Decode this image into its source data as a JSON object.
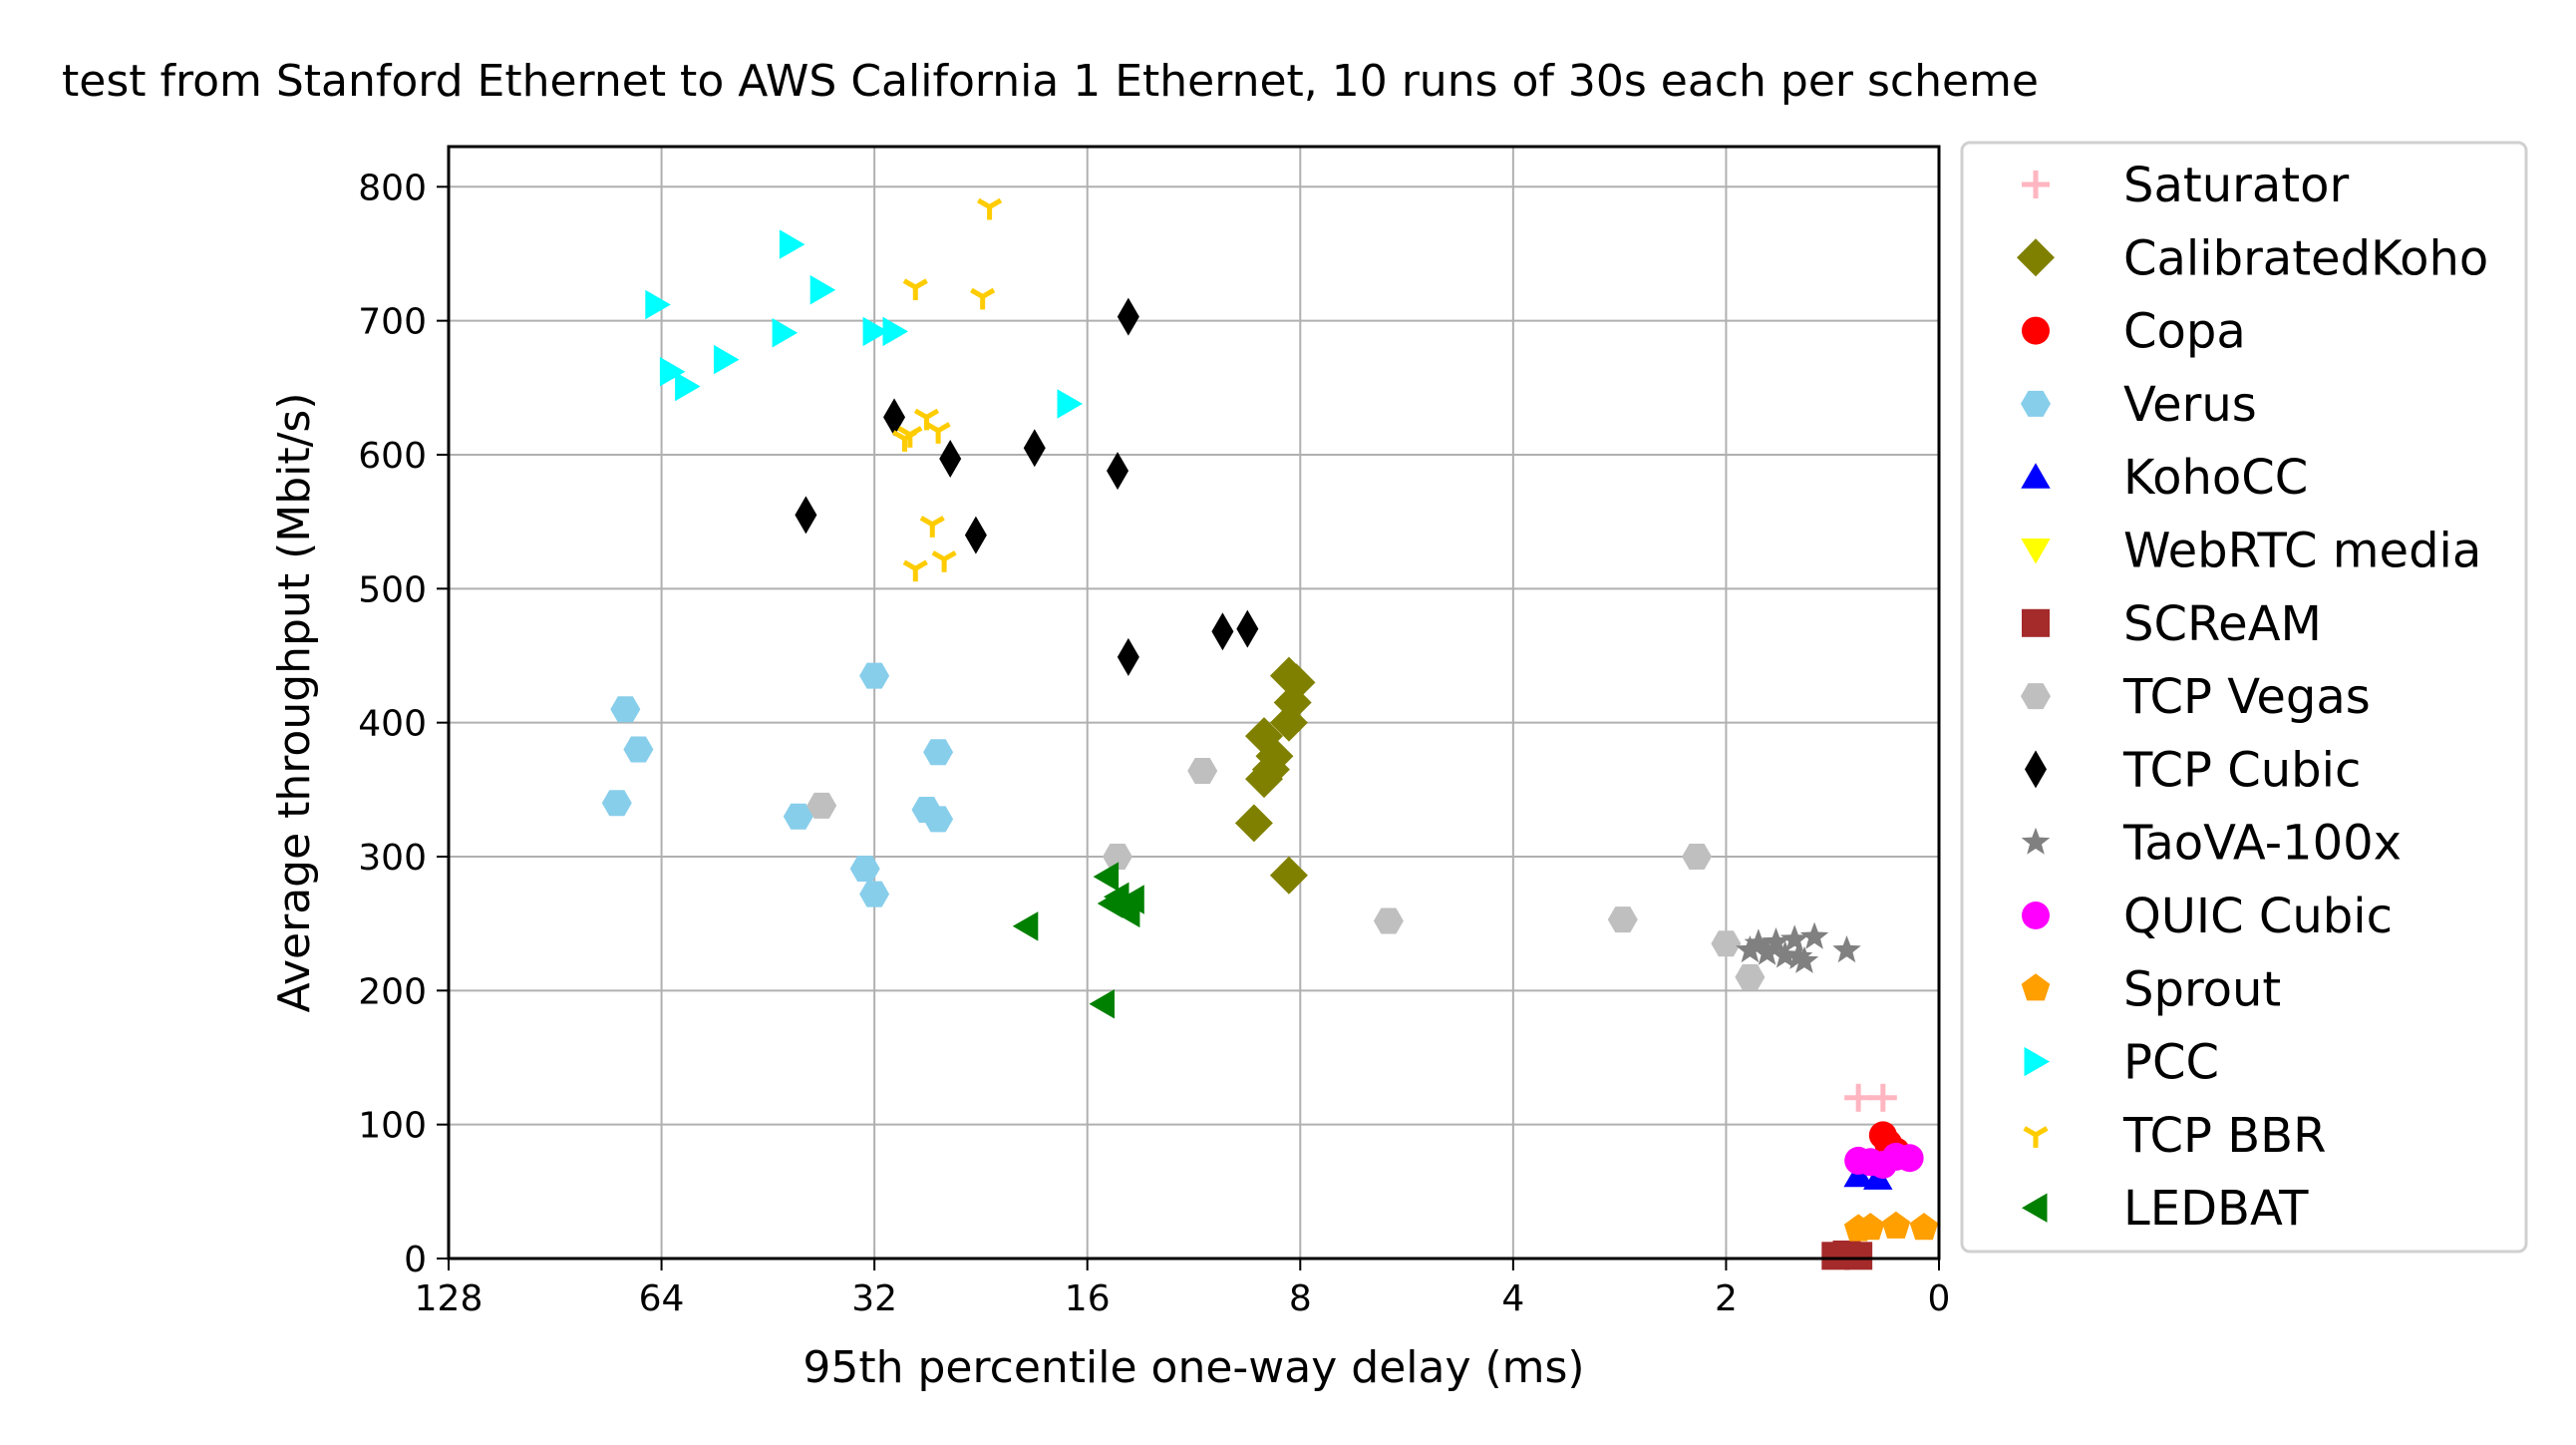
{
  "chart_data": {
    "type": "scatter",
    "title": "test from Stanford Ethernet to AWS California 1 Ethernet, 10 runs of 30s each per scheme",
    "xlabel": "95th percentile one-way delay (ms)",
    "ylabel": "Average throughput (Mbit/s)",
    "x_scale": "log2, inverted",
    "xlim": [
      128,
      0
    ],
    "ylim": [
      0,
      830
    ],
    "x_ticks": [
      128,
      64,
      32,
      16,
      8,
      4,
      2,
      0
    ],
    "x_tick_labels": [
      "128",
      "64",
      "32",
      "16",
      "8",
      "4",
      "2",
      "0"
    ],
    "y_ticks": [
      0,
      100,
      200,
      300,
      400,
      500,
      600,
      700,
      800
    ],
    "y_tick_labels": [
      "0",
      "100",
      "200",
      "300",
      "400",
      "500",
      "600",
      "700",
      "800"
    ],
    "grid": true,
    "legend_position": "outside right",
    "series": [
      {
        "name": "Saturator",
        "marker": "plus",
        "color": "#ffb6c1",
        "points": [
          [
            1.3,
            120
          ],
          [
            1.2,
            120
          ]
        ]
      },
      {
        "name": "CalibratedKoho",
        "marker": "diamond",
        "color": "#808000",
        "points": [
          [
            8.3,
            435
          ],
          [
            8.1,
            430
          ],
          [
            8.2,
            415
          ],
          [
            8.3,
            400
          ],
          [
            9.0,
            390
          ],
          [
            8.7,
            375
          ],
          [
            8.8,
            365
          ],
          [
            9.0,
            358
          ],
          [
            9.3,
            325
          ],
          [
            8.3,
            286
          ]
        ]
      },
      {
        "name": "Copa",
        "marker": "circle",
        "color": "#ff0000",
        "points": [
          [
            1.2,
            92
          ],
          [
            1.18,
            86
          ],
          [
            1.15,
            80
          ]
        ]
      },
      {
        "name": "Verus",
        "marker": "hexagon",
        "color": "#87ceeb",
        "points": [
          [
            72,
            410
          ],
          [
            69,
            380
          ],
          [
            74,
            340
          ],
          [
            32,
            435
          ],
          [
            26,
            378
          ],
          [
            27,
            335
          ],
          [
            26,
            328
          ],
          [
            41,
            330
          ],
          [
            33,
            291
          ],
          [
            32,
            272
          ]
        ]
      },
      {
        "name": "KohoCC",
        "marker": "triangle-up",
        "color": "#0000ff",
        "points": [
          [
            1.3,
            62
          ],
          [
            1.22,
            60
          ]
        ]
      },
      {
        "name": "WebRTC media",
        "marker": "triangle-down",
        "color": "#ffff00",
        "points": []
      },
      {
        "name": "SCReAM",
        "marker": "square",
        "color": "#a52a2a",
        "points": [
          [
            1.4,
            2
          ],
          [
            1.3,
            2
          ],
          [
            1.35,
            3
          ]
        ]
      },
      {
        "name": "TCP Vegas",
        "marker": "hexagon",
        "color": "#bfbfbf",
        "points": [
          [
            38,
            338
          ],
          [
            14.5,
            300
          ],
          [
            11,
            364
          ],
          [
            6,
            252
          ],
          [
            2.8,
            253
          ],
          [
            2.2,
            300
          ],
          [
            2.0,
            235
          ],
          [
            1.85,
            210
          ]
        ]
      },
      {
        "name": "TCP Cubic",
        "marker": "diamond-thin",
        "color": "#000000",
        "points": [
          [
            14,
            703
          ],
          [
            30,
            628
          ],
          [
            25,
            597
          ],
          [
            19,
            605
          ],
          [
            14.5,
            588
          ],
          [
            40,
            555
          ],
          [
            23,
            540
          ],
          [
            10.3,
            468
          ],
          [
            9.5,
            470
          ],
          [
            14,
            449
          ]
        ]
      },
      {
        "name": "TaoVA-100x",
        "marker": "star",
        "color": "#808080",
        "points": [
          [
            1.8,
            235
          ],
          [
            1.7,
            236
          ],
          [
            1.6,
            238
          ],
          [
            1.5,
            240
          ],
          [
            1.85,
            230
          ],
          [
            1.75,
            228
          ],
          [
            1.65,
            226
          ],
          [
            1.58,
            225
          ],
          [
            1.55,
            222
          ],
          [
            1.35,
            230
          ]
        ]
      },
      {
        "name": "QUIC Cubic",
        "marker": "circle",
        "color": "#ff00ff",
        "points": [
          [
            1.25,
            72
          ],
          [
            1.15,
            76
          ],
          [
            1.1,
            75
          ],
          [
            1.2,
            70
          ],
          [
            1.3,
            73
          ]
        ]
      },
      {
        "name": "Sprout",
        "marker": "pentagon",
        "color": "#ff9f00",
        "points": [
          [
            1.25,
            23
          ],
          [
            1.15,
            24
          ],
          [
            1.05,
            23
          ],
          [
            1.3,
            22
          ]
        ]
      },
      {
        "name": "PCC",
        "marker": "triangle-right",
        "color": "#00ffff",
        "points": [
          [
            42,
            757
          ],
          [
            38,
            723
          ],
          [
            65,
            712
          ],
          [
            52,
            671
          ],
          [
            43,
            691
          ],
          [
            32,
            692
          ],
          [
            30,
            692
          ],
          [
            62,
            662
          ],
          [
            59,
            651
          ],
          [
            17,
            638
          ]
        ]
      },
      {
        "name": "TCP BBR",
        "marker": "tri-down",
        "color": "#ffcc00",
        "points": [
          [
            22,
            785
          ],
          [
            28,
            725
          ],
          [
            22.5,
            718
          ],
          [
            27,
            628
          ],
          [
            26,
            618
          ],
          [
            29,
            612
          ],
          [
            28.5,
            615
          ],
          [
            26.5,
            548
          ],
          [
            25.5,
            522
          ],
          [
            28,
            515
          ]
        ]
      },
      {
        "name": "LEDBAT",
        "marker": "triangle-left",
        "color": "#008000",
        "points": [
          [
            15,
            285
          ],
          [
            14.5,
            270
          ],
          [
            13.8,
            268
          ],
          [
            14.2,
            262
          ],
          [
            14.8,
            265
          ],
          [
            14.0,
            258
          ],
          [
            19.5,
            248
          ],
          [
            15.2,
            190
          ]
        ]
      }
    ]
  }
}
